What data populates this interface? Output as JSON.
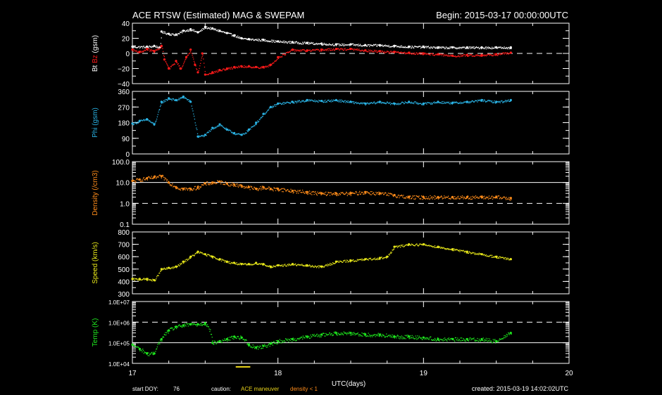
{
  "header": {
    "title": "ACE RTSW (Estimated) MAG & SWEPAM",
    "begin_text": "Begin: 2015-03-17 00:00:00UTC"
  },
  "footer": {
    "start_doy_label": "start DOY:",
    "start_doy_value": "76",
    "caution_label": "caution:",
    "caution_maneuver": "ACE maneuver",
    "caution_density": "density < 1",
    "created": "created: 2015-03-19 14:02:02UTC"
  },
  "colors": {
    "white": "#ffffff",
    "bz": "#ff1a1a",
    "phi": "#2ab4e6",
    "density": "#ff8c1a",
    "speed": "#e8e81a",
    "temp": "#1ee81e",
    "maneuver": "#e8d21a"
  },
  "chart_data": {
    "type": "scatter",
    "x_axis": {
      "label": "UTC(days)",
      "range": [
        17,
        20
      ],
      "ticks": [
        "17",
        "18",
        "19",
        "20"
      ]
    },
    "maneuver_marker": {
      "x_range": [
        17.71,
        17.81
      ]
    },
    "panels": [
      {
        "id": "mag",
        "ylabel_parts": [
          {
            "text": "Bt",
            "color_key": "white"
          },
          {
            "text": "Bz",
            "color_key": "bz"
          },
          {
            "text": "(gsm)",
            "color_key": "white"
          }
        ],
        "ylim": [
          -40,
          40
        ],
        "log": false,
        "ticks": [
          40,
          20,
          0,
          -20,
          -40
        ],
        "tick_labels": [
          "40",
          "20",
          "0",
          "−20",
          "−40"
        ],
        "dashed_refs": [
          0
        ],
        "solid_refs": [],
        "series": [
          {
            "color_key": "white",
            "x": [
              17.0,
              17.1,
              17.15,
              17.19,
              17.2,
              17.25,
              17.3,
              17.35,
              17.4,
              17.45,
              17.5,
              17.55,
              17.6,
              17.65,
              17.7,
              17.75,
              17.8,
              17.9,
              18.0,
              18.1,
              18.2,
              18.3,
              18.4,
              18.5,
              18.6,
              18.7,
              18.8,
              18.9,
              19.0,
              19.1,
              19.2,
              19.3,
              19.4,
              19.5,
              19.6
            ],
            "y": [
              9,
              9,
              10,
              8,
              29,
              26,
              25,
              30,
              32,
              28,
              35,
              33,
              30,
              27,
              24,
              20,
              19,
              18,
              16,
              15,
              14,
              13,
              12,
              12,
              11,
              11,
              10,
              9,
              9,
              8,
              8,
              8,
              8,
              8,
              8
            ]
          },
          {
            "color_key": "bz",
            "x": [
              17.0,
              17.05,
              17.1,
              17.15,
              17.2,
              17.22,
              17.25,
              17.3,
              17.33,
              17.37,
              17.4,
              17.43,
              17.45,
              17.48,
              17.5,
              17.55,
              17.6,
              17.65,
              17.7,
              17.75,
              17.8,
              17.85,
              17.9,
              17.95,
              18.0,
              18.1,
              18.2,
              18.3,
              18.4,
              18.5,
              18.6,
              18.7,
              18.8,
              18.9,
              19.0,
              19.1,
              19.2,
              19.3,
              19.4,
              19.5,
              19.6
            ],
            "y": [
              5,
              2,
              6,
              3,
              10,
              -8,
              -20,
              -10,
              -20,
              -5,
              5,
              -15,
              -25,
              0,
              -28,
              -25,
              -22,
              -20,
              -18,
              -17,
              -17,
              -18,
              -18,
              -15,
              -5,
              5,
              4,
              5,
              6,
              6,
              4,
              3,
              2,
              1,
              0,
              -1,
              -3,
              -2,
              -2,
              -1,
              1
            ]
          }
        ]
      },
      {
        "id": "phi",
        "ylabel_parts": [
          {
            "text": "Phi",
            "color_key": "phi"
          },
          {
            "text": "(gsm)",
            "color_key": "phi"
          }
        ],
        "ylim": [
          0,
          360
        ],
        "log": false,
        "ticks": [
          360,
          270,
          180,
          90,
          0
        ],
        "tick_labels": [
          "360",
          "270",
          "180",
          "90",
          "0"
        ],
        "dashed_refs": [],
        "solid_refs": [],
        "series": [
          {
            "color_key": "phi",
            "x": [
              17.0,
              17.05,
              17.1,
              17.15,
              17.2,
              17.25,
              17.3,
              17.35,
              17.4,
              17.45,
              17.5,
              17.55,
              17.6,
              17.65,
              17.7,
              17.75,
              17.8,
              17.85,
              17.9,
              17.95,
              18.0,
              18.1,
              18.2,
              18.3,
              18.4,
              18.5,
              18.6,
              18.7,
              18.8,
              18.9,
              19.0,
              19.1,
              19.2,
              19.3,
              19.4,
              19.5,
              19.6
            ],
            "y": [
              175,
              190,
              200,
              170,
              300,
              320,
              310,
              330,
              300,
              100,
              110,
              150,
              170,
              140,
              120,
              110,
              140,
              180,
              230,
              270,
              290,
              300,
              310,
              305,
              310,
              300,
              290,
              300,
              290,
              300,
              290,
              300,
              295,
              300,
              310,
              300,
              310
            ]
          }
        ]
      },
      {
        "id": "density",
        "ylabel_parts": [
          {
            "text": "Density",
            "color_key": "density"
          },
          {
            "text": "(/cm3)",
            "color_key": "density"
          }
        ],
        "ylim": [
          0.1,
          100
        ],
        "log": true,
        "ticks": [
          100,
          10,
          1,
          0.1
        ],
        "tick_labels": [
          "100.0",
          "10.0",
          "1.0",
          "0.1"
        ],
        "dashed_refs": [
          1
        ],
        "solid_refs": [
          10
        ],
        "series": [
          {
            "color_key": "density",
            "x": [
              17.0,
              17.05,
              17.1,
              17.15,
              17.2,
              17.25,
              17.3,
              17.35,
              17.4,
              17.45,
              17.5,
              17.55,
              17.6,
              17.65,
              17.7,
              17.75,
              17.8,
              17.85,
              17.9,
              17.95,
              18.0,
              18.1,
              18.2,
              18.3,
              18.4,
              18.5,
              18.6,
              18.7,
              18.8,
              18.9,
              19.0,
              19.1,
              19.2,
              19.3,
              19.4,
              19.5,
              19.6
            ],
            "y": [
              12,
              14,
              16,
              18,
              20,
              10,
              6,
              5,
              5,
              6,
              9,
              10,
              11,
              9,
              8,
              7,
              6,
              5,
              6,
              5,
              5,
              4,
              3.5,
              3,
              3,
              3,
              3.5,
              3,
              2.5,
              2,
              2,
              2,
              2,
              2,
              2,
              2,
              1.8
            ]
          }
        ]
      },
      {
        "id": "speed",
        "ylabel_parts": [
          {
            "text": "Speed",
            "color_key": "speed"
          },
          {
            "text": "(km/s)",
            "color_key": "speed"
          }
        ],
        "ylim": [
          300,
          800
        ],
        "log": false,
        "ticks": [
          800,
          700,
          600,
          500,
          400,
          300
        ],
        "tick_labels": [
          "800",
          "700",
          "600",
          "500",
          "400",
          "300"
        ],
        "dashed_refs": [],
        "solid_refs": [],
        "series": [
          {
            "color_key": "speed",
            "x": [
              17.0,
              17.05,
              17.1,
              17.15,
              17.2,
              17.25,
              17.3,
              17.35,
              17.4,
              17.45,
              17.5,
              17.55,
              17.6,
              17.65,
              17.7,
              17.75,
              17.8,
              17.85,
              17.9,
              17.95,
              18.0,
              18.1,
              18.2,
              18.3,
              18.4,
              18.5,
              18.6,
              18.7,
              18.75,
              18.8,
              18.9,
              19.0,
              19.1,
              19.2,
              19.3,
              19.4,
              19.5,
              19.6
            ],
            "y": [
              420,
              420,
              420,
              410,
              500,
              510,
              520,
              560,
              600,
              640,
              620,
              600,
              580,
              560,
              550,
              540,
              540,
              550,
              540,
              520,
              530,
              540,
              530,
              520,
              560,
              570,
              580,
              590,
              600,
              680,
              700,
              700,
              680,
              660,
              640,
              620,
              600,
              580
            ]
          }
        ]
      },
      {
        "id": "temp",
        "ylabel_parts": [
          {
            "text": "Temp",
            "color_key": "temp"
          },
          {
            "text": "(K)",
            "color_key": "temp"
          }
        ],
        "ylim": [
          10000,
          10000000
        ],
        "log": true,
        "ticks": [
          10000000,
          1000000,
          100000,
          10000
        ],
        "tick_labels": [
          "1.0E+07",
          "1.0E+06",
          "1.0E+05",
          "1.0E+04"
        ],
        "dashed_refs": [
          1000000
        ],
        "solid_refs": [
          100000
        ],
        "series": [
          {
            "color_key": "temp",
            "x": [
              17.0,
              17.05,
              17.1,
              17.15,
              17.2,
              17.25,
              17.3,
              17.35,
              17.4,
              17.45,
              17.5,
              17.55,
              17.6,
              17.65,
              17.7,
              17.75,
              17.8,
              17.85,
              17.9,
              17.95,
              18.0,
              18.1,
              18.2,
              18.3,
              18.4,
              18.5,
              18.6,
              18.7,
              18.8,
              18.9,
              19.0,
              19.1,
              19.2,
              19.3,
              19.4,
              19.5,
              19.6
            ],
            "y": [
              80000,
              50000,
              30000,
              30000,
              150000,
              400000,
              600000,
              700000,
              800000,
              800000,
              900000,
              100000,
              120000,
              150000,
              200000,
              180000,
              80000,
              60000,
              70000,
              90000,
              120000,
              150000,
              200000,
              250000,
              300000,
              300000,
              250000,
              250000,
              200000,
              200000,
              180000,
              150000,
              150000,
              150000,
              150000,
              120000,
              300000
            ]
          }
        ]
      }
    ]
  }
}
